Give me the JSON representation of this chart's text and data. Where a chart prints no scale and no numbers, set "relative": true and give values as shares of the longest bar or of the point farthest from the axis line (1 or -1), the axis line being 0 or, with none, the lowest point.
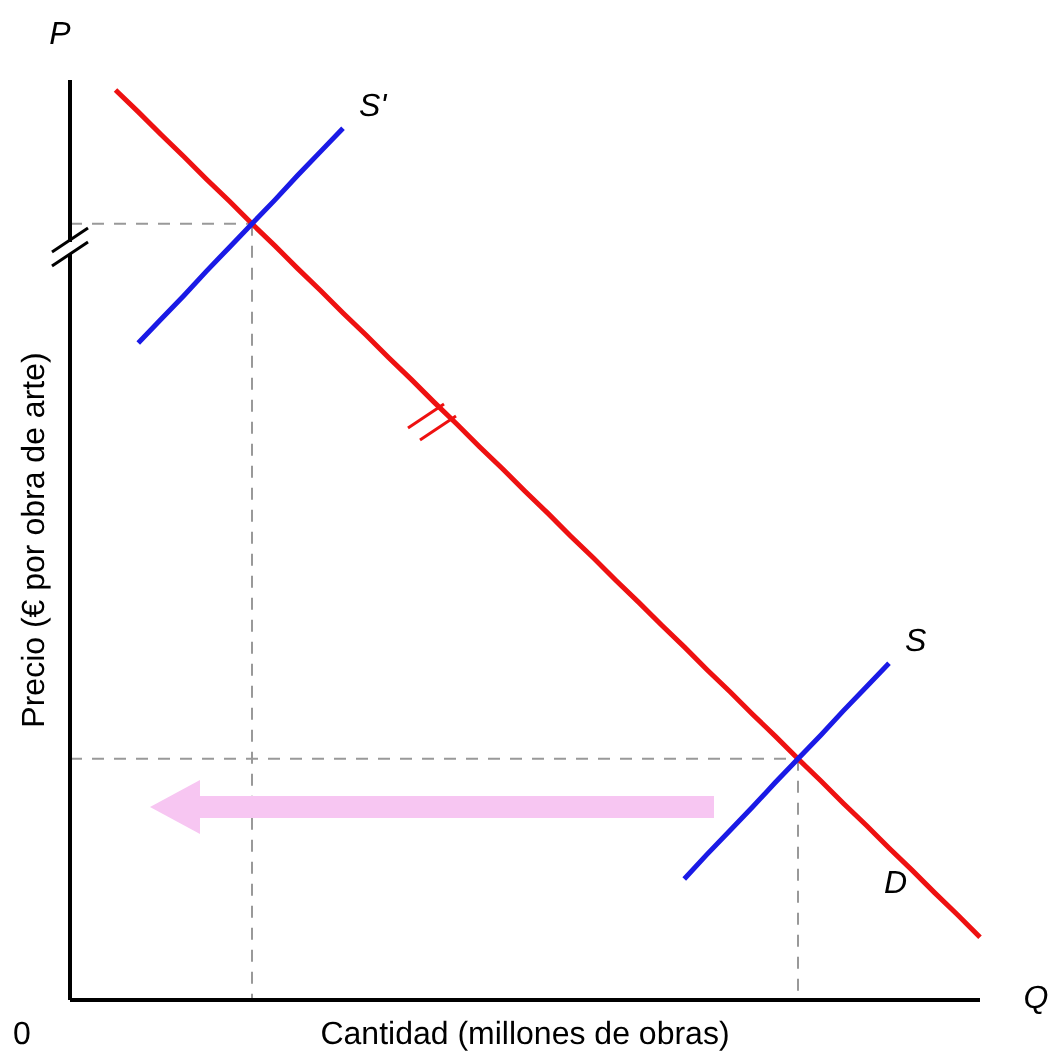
{
  "chart_data": {
    "type": "line",
    "relative": true,
    "xlabel": "Cantidad (millones de obras)",
    "ylabel": "Precio (€ por obra de arte)",
    "annotations": [
      "P",
      "Q",
      "0"
    ],
    "categories": [
      null,
      null,
      null,
      null,
      null,
      null,
      null,
      null,
      null,
      null,
      null,
      null,
      null,
      null,
      null,
      null,
      null,
      null,
      null,
      null,
      null,
      null,
      null,
      null,
      null,
      null,
      null,
      null,
      null,
      null,
      null,
      null,
      null,
      null,
      null,
      null,
      null,
      null,
      null,
      null,
      null
    ],
    "series": [
      {
        "color": "#999999",
        "line_style": "dashed",
        "values": [
          0.853,
          0.853,
          0.853,
          0.853,
          0.853,
          0.853,
          0.853,
          0.853,
          0.853,
          null,
          null,
          null,
          null,
          null,
          null,
          null,
          null,
          null,
          null,
          null,
          null,
          null,
          null,
          null,
          null,
          null,
          null,
          null,
          null,
          null,
          null,
          null,
          null,
          null,
          null,
          null,
          null,
          null,
          null,
          null,
          null
        ]
      },
      {
        "color": "#999999",
        "line_style": "dashed",
        "values": [
          0.265,
          0.265,
          0.265,
          0.265,
          0.265,
          0.265,
          0.265,
          0.265,
          0.265,
          0.265,
          0.265,
          0.265,
          0.265,
          0.265,
          0.265,
          0.265,
          0.265,
          0.265,
          0.265,
          0.265,
          0.265,
          0.265,
          0.265,
          0.265,
          0.265,
          0.265,
          0.265,
          0.265,
          0.265,
          0.265,
          0.265,
          0.265,
          0.265,
          null,
          null,
          null,
          null,
          null,
          null,
          null,
          null
        ]
      },
      {
        "name": "D",
        "color": "#ee1111",
        "values": [
          null,
          null,
          1.0,
          0.976,
          0.951,
          0.927,
          0.902,
          0.878,
          0.853,
          0.829,
          0.804,
          0.78,
          0.755,
          0.731,
          0.706,
          0.682,
          0.657,
          0.633,
          0.608,
          0.584,
          0.559,
          0.535,
          0.51,
          0.486,
          0.461,
          0.437,
          0.412,
          0.388,
          0.363,
          0.339,
          0.314,
          0.29,
          0.265,
          0.241,
          0.216,
          0.192,
          0.167,
          0.143,
          0.118,
          0.094,
          0.069
        ]
      },
      {
        "name": "S'",
        "color": "#1a1ae6",
        "values": [
          null,
          null,
          null,
          0.722,
          0.748,
          0.774,
          0.801,
          0.827,
          0.853,
          0.879,
          0.906,
          0.932,
          0.958,
          null,
          null,
          null,
          null,
          null,
          null,
          null,
          null,
          null,
          null,
          null,
          null,
          null,
          null,
          null,
          null,
          null,
          null,
          null,
          null,
          null,
          null,
          null,
          null,
          null,
          null,
          null,
          null
        ]
      },
      {
        "name": "S",
        "color": "#1a1ae6",
        "values": [
          null,
          null,
          null,
          null,
          null,
          null,
          null,
          null,
          null,
          null,
          null,
          null,
          null,
          null,
          null,
          null,
          null,
          null,
          null,
          null,
          null,
          null,
          null,
          null,
          null,
          null,
          null,
          0.133,
          0.16,
          0.186,
          0.212,
          0.239,
          0.265,
          0.291,
          0.318,
          0.344,
          0.37,
          null,
          null,
          null,
          null
        ]
      }
    ]
  }
}
